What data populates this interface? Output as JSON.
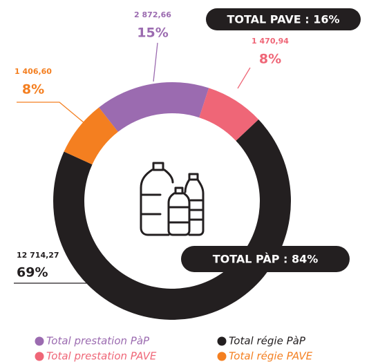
{
  "chart_data": {
    "type": "donut",
    "categories": [
      "Total prestation PàP",
      "Total prestation PAVE",
      "Total régie PàP",
      "Total régie PAVE"
    ],
    "values": [
      2872.66,
      1470.94,
      12714.27,
      1406.6
    ],
    "value_labels": [
      "2 872,66",
      "1 470,94",
      "12 714,27",
      "1 406,60"
    ],
    "shares": [
      15,
      8,
      69,
      8
    ],
    "share_labels": [
      "15%",
      "8%",
      "69%",
      "8%"
    ],
    "colors": [
      "#9b6bb0",
      "#ef6677",
      "#231f20",
      "#f47f20"
    ],
    "annotations": [
      "TOTAL PAVE : 16%",
      "TOTAL PÀP : 84%"
    ]
  }
}
